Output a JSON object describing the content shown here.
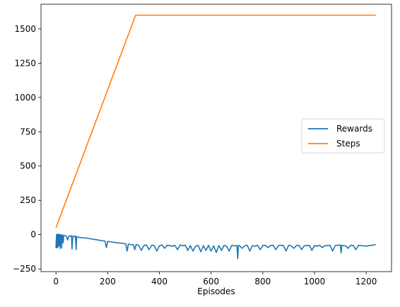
{
  "chart_data": {
    "type": "line",
    "title": "",
    "xlabel": "Episodes",
    "ylabel": "",
    "xlim": [
      -58,
      1298
    ],
    "ylim": [
      -270,
      1680
    ],
    "xticks": [
      0,
      200,
      400,
      600,
      800,
      1000,
      1200
    ],
    "yticks": [
      -250,
      0,
      250,
      500,
      750,
      1000,
      1250,
      1500
    ],
    "grid": false,
    "legend_position": "center-right",
    "series": [
      {
        "name": "Rewards",
        "color": "#1f77b4",
        "x": [
          0,
          2,
          4,
          6,
          8,
          10,
          12,
          14,
          16,
          18,
          20,
          22,
          24,
          26,
          28,
          30,
          35,
          40,
          45,
          50,
          55,
          60,
          62,
          65,
          70,
          75,
          78,
          80,
          85,
          90,
          100,
          110,
          120,
          130,
          140,
          150,
          160,
          170,
          180,
          190,
          195,
          200,
          210,
          220,
          230,
          240,
          250,
          260,
          270,
          275,
          280,
          290,
          300,
          305,
          310,
          320,
          330,
          340,
          350,
          360,
          370,
          380,
          390,
          400,
          410,
          420,
          430,
          440,
          450,
          460,
          470,
          480,
          490,
          500,
          510,
          520,
          530,
          540,
          550,
          560,
          570,
          580,
          590,
          600,
          610,
          620,
          630,
          640,
          650,
          660,
          670,
          680,
          690,
          700,
          703,
          706,
          710,
          720,
          730,
          740,
          750,
          760,
          770,
          780,
          790,
          800,
          810,
          820,
          830,
          840,
          850,
          860,
          870,
          880,
          890,
          900,
          910,
          920,
          930,
          940,
          950,
          960,
          970,
          980,
          990,
          1000,
          1010,
          1020,
          1030,
          1040,
          1050,
          1060,
          1070,
          1080,
          1090,
          1100,
          1103,
          1106,
          1110,
          1120,
          1130,
          1140,
          1150,
          1160,
          1170,
          1180,
          1190,
          1200,
          1210,
          1220,
          1230,
          1237
        ],
        "y": [
          -100,
          0,
          -95,
          5,
          -90,
          0,
          -80,
          3,
          -100,
          -5,
          0,
          -98,
          -3,
          -8,
          -60,
          -5,
          -7,
          -10,
          -40,
          -10,
          -12,
          -8,
          -105,
          -12,
          -15,
          -10,
          -110,
          -15,
          -18,
          -20,
          -22,
          -25,
          -25,
          -30,
          -32,
          -35,
          -38,
          -42,
          -45,
          -48,
          -95,
          -50,
          -52,
          -55,
          -58,
          -60,
          -62,
          -65,
          -68,
          -120,
          -70,
          -72,
          -75,
          -110,
          -72,
          -78,
          -115,
          -80,
          -75,
          -110,
          -78,
          -80,
          -120,
          -82,
          -75,
          -100,
          -78,
          -80,
          -85,
          -78,
          -110,
          -75,
          -82,
          -78,
          -115,
          -80,
          -120,
          -85,
          -78,
          -125,
          -80,
          -115,
          -78,
          -120,
          -82,
          -130,
          -80,
          -115,
          -78,
          -85,
          -120,
          -78,
          -82,
          -80,
          -175,
          -78,
          -80,
          -100,
          -82,
          -78,
          -120,
          -80,
          -85,
          -78,
          -110,
          -80,
          -78,
          -95,
          -80,
          -78,
          -110,
          -82,
          -78,
          -80,
          -120,
          -78,
          -82,
          -100,
          -80,
          -78,
          -110,
          -82,
          -80,
          -78,
          -115,
          -80,
          -85,
          -78,
          -95,
          -82,
          -80,
          -78,
          -120,
          -80,
          -78,
          -75,
          -135,
          -78,
          -80,
          -82,
          -100,
          -78,
          -80,
          -110,
          -78,
          -80,
          -82,
          -85,
          -80,
          -78,
          -75,
          -72
        ]
      },
      {
        "name": "Steps",
        "color": "#ff7f0e",
        "x": [
          0,
          308,
          1237
        ],
        "y": [
          50,
          1600,
          1600
        ]
      }
    ]
  }
}
